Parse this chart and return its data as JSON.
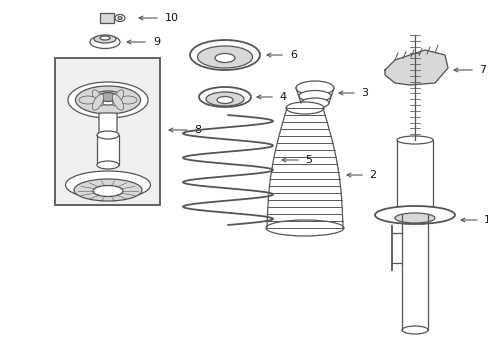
{
  "background_color": "#ffffff",
  "line_color": "#555555",
  "label_color": "#111111",
  "box_fill": "#f0f0f0",
  "part_fill": "#ffffff",
  "gray_fill": "#d8d8d8",
  "dark_fill": "#aaaaaa",
  "figsize": [
    4.89,
    3.6
  ],
  "dpi": 100
}
